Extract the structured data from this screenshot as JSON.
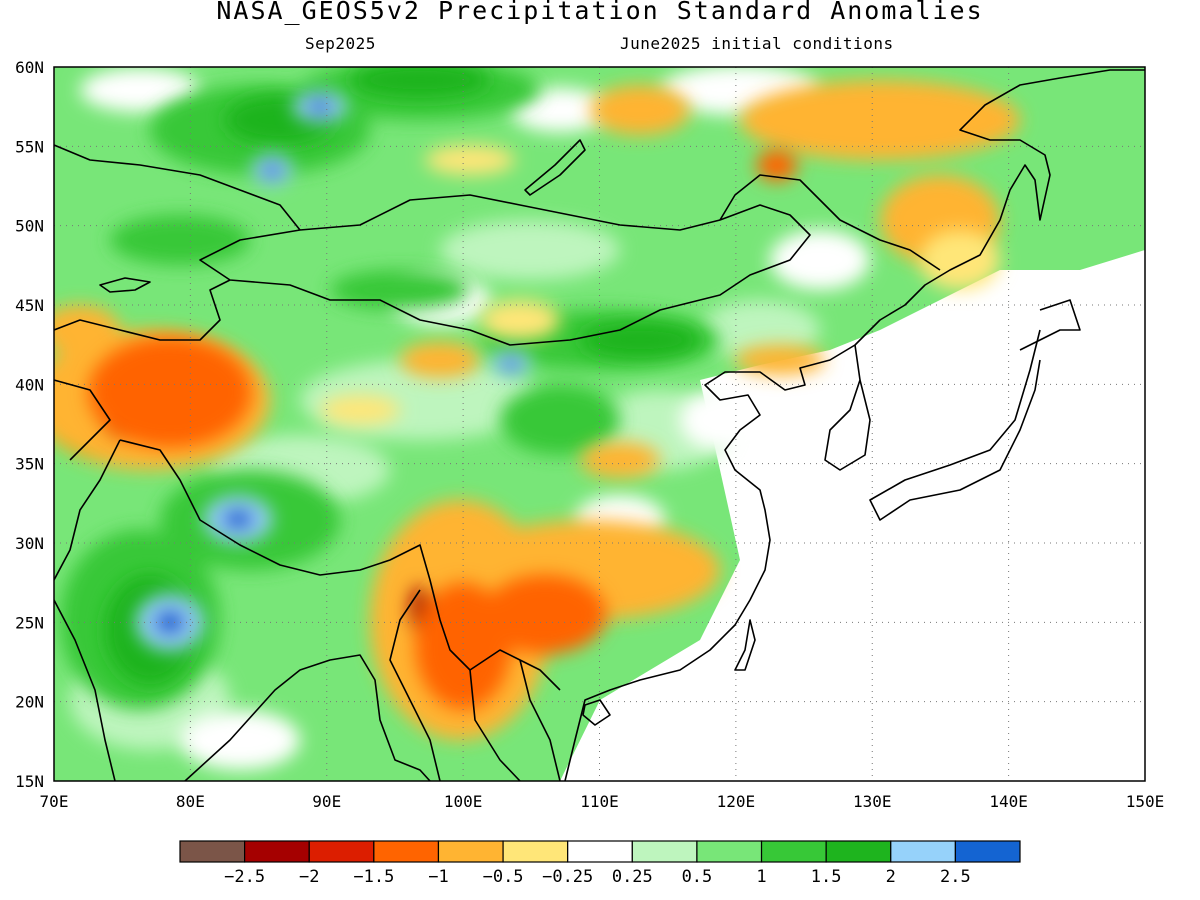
{
  "header": {
    "title": "NASA_GEOS5v2 Precipitation Standard Anomalies",
    "valid_month": "Sep2025",
    "init_conditions": "June2025 initial conditions"
  },
  "map": {
    "projection": "lat-lon",
    "lon_range": [
      70,
      150
    ],
    "lat_range": [
      15,
      60
    ],
    "lon_labels": [
      "70E",
      "80E",
      "90E",
      "100E",
      "110E",
      "120E",
      "130E",
      "140E",
      "150E"
    ],
    "lat_labels": [
      "15N",
      "20N",
      "25N",
      "30N",
      "35N",
      "40N",
      "45N",
      "50N",
      "55N",
      "60N"
    ],
    "gridlines": "dotted",
    "anomaly_regions": [
      {
        "level": "dark-red",
        "lon": 75.5,
        "lat": 39.0,
        "rlon": 2.5,
        "rlat": 2.5
      },
      {
        "level": "orange",
        "lon": 78.5,
        "lat": 39.5,
        "rlon": 6.0,
        "rlat": 3.5
      },
      {
        "level": "dark-red",
        "lon": 96.8,
        "lat": 25.8,
        "rlon": 0.7,
        "rlat": 1.5
      },
      {
        "level": "dark-red",
        "lon": 100.5,
        "lat": 21.5,
        "rlon": 1.2,
        "rlat": 2.0
      },
      {
        "level": "orange",
        "lon": 100.0,
        "lat": 23.5,
        "rlon": 3.5,
        "rlat": 4.0
      },
      {
        "level": "orange",
        "lon": 106.0,
        "lat": 25.5,
        "rlon": 4.5,
        "rlat": 2.5
      },
      {
        "level": "orange",
        "lon": 123.0,
        "lat": 53.8,
        "rlon": 1.5,
        "rlat": 1.0
      },
      {
        "level": "blue",
        "lon": 78.5,
        "lat": 25.0,
        "rlon": 2.5,
        "rlat": 1.8
      },
      {
        "level": "blue",
        "lon": 83.5,
        "lat": 31.5,
        "rlon": 2.5,
        "rlat": 1.5
      },
      {
        "level": "blue",
        "lon": 89.5,
        "lat": 57.5,
        "rlon": 2.0,
        "rlat": 1.0
      },
      {
        "level": "blue",
        "lon": 86.0,
        "lat": 53.5,
        "rlon": 1.5,
        "rlat": 1.0
      },
      {
        "level": "blue",
        "lon": 103.5,
        "lat": 41.3,
        "rlon": 1.5,
        "rlat": 0.8
      }
    ]
  },
  "colorbar": {
    "colors": [
      "#7b5548",
      "#a50000",
      "#dc1e00",
      "#ff6400",
      "#ffb432",
      "#ffe678",
      "#ffffff",
      "#bef5be",
      "#78e678",
      "#37c837",
      "#1eb41e",
      "#96d2fa",
      "#1464d2"
    ],
    "labels": [
      "−2.5",
      "−2",
      "−1.5",
      "−1",
      "−0.5",
      "−0.25",
      "0.25",
      "0.5",
      "1",
      "1.5",
      "2",
      "2.5"
    ]
  }
}
